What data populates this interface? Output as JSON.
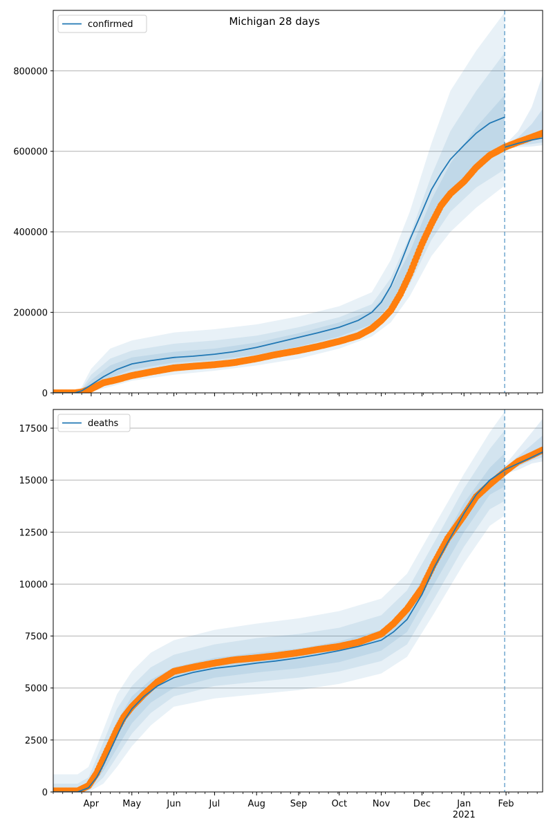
{
  "figure_title": "Michigan 28 days",
  "colors": {
    "model": "#1f77b4",
    "observed": "#ff7f0e",
    "band": "#1f77b4",
    "grid": "#b0b0b0",
    "forecast_line": "#1f77b4"
  },
  "x_axis": {
    "month_labels": [
      "Apr",
      "May",
      "Jun",
      "Jul",
      "Aug",
      "Sep",
      "Oct",
      "Nov",
      "Dec",
      "Jan",
      "Feb"
    ],
    "year_label": "2021"
  },
  "chart_data": [
    {
      "type": "line",
      "legend": "confirmed",
      "legend_position": "top-left",
      "grid": "y",
      "x_range": [
        "2020-03-04",
        "2021-02-28"
      ],
      "ylim": [
        0,
        950000
      ],
      "yticks": [
        0,
        200000,
        400000,
        600000,
        800000
      ],
      "ytick_labels": [
        "0",
        "200000",
        "400000",
        "600000",
        "800000"
      ],
      "forecast_start": "2021-01-31",
      "observed": {
        "x": [
          "2020-03-04",
          "2020-03-20",
          "2020-03-25",
          "2020-04-01",
          "2020-04-10",
          "2020-04-20",
          "2020-05-01",
          "2020-05-15",
          "2020-06-01",
          "2020-06-15",
          "2020-07-01",
          "2020-07-15",
          "2020-08-01",
          "2020-08-15",
          "2020-09-01",
          "2020-09-15",
          "2020-10-01",
          "2020-10-15",
          "2020-10-25",
          "2020-11-01",
          "2020-11-08",
          "2020-11-15",
          "2020-11-22",
          "2020-12-01",
          "2020-12-08",
          "2020-12-15",
          "2020-12-22",
          "2021-01-01",
          "2021-01-10",
          "2021-01-20",
          "2021-01-31",
          "2021-02-10",
          "2021-02-20",
          "2021-02-28"
        ],
        "y": [
          0,
          0,
          2000,
          10000,
          25000,
          33000,
          43000,
          52000,
          62000,
          66000,
          70000,
          75000,
          85000,
          95000,
          105000,
          115000,
          128000,
          142000,
          160000,
          180000,
          205000,
          245000,
          295000,
          370000,
          420000,
          465000,
          495000,
          525000,
          560000,
          590000,
          610000,
          623000,
          635000,
          645000
        ]
      },
      "model": {
        "x": [
          "2020-03-04",
          "2020-03-20",
          "2020-03-25",
          "2020-04-01",
          "2020-04-10",
          "2020-04-20",
          "2020-05-01",
          "2020-05-15",
          "2020-06-01",
          "2020-06-15",
          "2020-07-01",
          "2020-07-15",
          "2020-08-01",
          "2020-08-15",
          "2020-09-01",
          "2020-09-15",
          "2020-10-01",
          "2020-10-15",
          "2020-10-25",
          "2020-11-01",
          "2020-11-08",
          "2020-11-15",
          "2020-11-22",
          "2020-12-01",
          "2020-12-08",
          "2020-12-15",
          "2020-12-22",
          "2021-01-01",
          "2021-01-10",
          "2021-01-20",
          "2021-01-31"
        ],
        "y": [
          0,
          0,
          5000,
          20000,
          40000,
          58000,
          72000,
          80000,
          88000,
          91000,
          96000,
          102000,
          113000,
          124000,
          138000,
          149000,
          163000,
          180000,
          200000,
          225000,
          265000,
          320000,
          380000,
          450000,
          505000,
          545000,
          580000,
          615000,
          645000,
          670000,
          685000
        ]
      },
      "model_tail": {
        "x": [
          "2021-01-31",
          "2021-02-10",
          "2021-02-20",
          "2021-02-28"
        ],
        "y": [
          610000,
          620000,
          628000,
          633000
        ]
      },
      "bands": [
        {
          "x": [
            "2020-03-04",
            "2020-03-20",
            "2020-03-25",
            "2020-04-01",
            "2020-04-15",
            "2020-05-01",
            "2020-06-01",
            "2020-07-01",
            "2020-08-01",
            "2020-09-01",
            "2020-10-01",
            "2020-10-25",
            "2020-11-08",
            "2020-11-22",
            "2020-12-08",
            "2020-12-22",
            "2021-01-10",
            "2021-01-31"
          ],
          "lo": [
            0,
            0,
            0,
            3000,
            15000,
            30000,
            45000,
            55000,
            68000,
            85000,
            110000,
            140000,
            175000,
            240000,
            340000,
            400000,
            460000,
            515000
          ],
          "hi": [
            0,
            0,
            15000,
            60000,
            110000,
            130000,
            150000,
            158000,
            170000,
            190000,
            215000,
            250000,
            330000,
            450000,
            620000,
            750000,
            850000,
            945000
          ]
        },
        {
          "x": [
            "2020-03-04",
            "2020-03-20",
            "2020-03-25",
            "2020-04-01",
            "2020-04-15",
            "2020-05-01",
            "2020-06-01",
            "2020-07-01",
            "2020-08-01",
            "2020-09-01",
            "2020-10-01",
            "2020-10-25",
            "2020-11-08",
            "2020-11-22",
            "2020-12-08",
            "2020-12-22",
            "2021-01-10",
            "2021-01-31"
          ],
          "lo": [
            0,
            0,
            0,
            8000,
            25000,
            45000,
            60000,
            68000,
            82000,
            100000,
            125000,
            155000,
            195000,
            270000,
            380000,
            450000,
            510000,
            555000
          ],
          "hi": [
            0,
            0,
            10000,
            45000,
            85000,
            105000,
            122000,
            130000,
            142000,
            163000,
            188000,
            220000,
            285000,
            390000,
            540000,
            650000,
            750000,
            845000
          ]
        },
        {
          "x": [
            "2020-03-04",
            "2020-03-20",
            "2020-03-25",
            "2020-04-01",
            "2020-04-15",
            "2020-05-01",
            "2020-06-01",
            "2020-07-01",
            "2020-08-01",
            "2020-09-01",
            "2020-10-01",
            "2020-10-25",
            "2020-11-08",
            "2020-11-22",
            "2020-12-08",
            "2020-12-22",
            "2021-01-10",
            "2021-01-31"
          ],
          "lo": [
            0,
            0,
            2000,
            13000,
            38000,
            58000,
            75000,
            82000,
            95000,
            115000,
            140000,
            170000,
            220000,
            300000,
            420000,
            500000,
            560000,
            605000
          ],
          "hi": [
            0,
            0,
            8000,
            32000,
            68000,
            88000,
            102000,
            110000,
            125000,
            148000,
            175000,
            205000,
            260000,
            350000,
            480000,
            570000,
            660000,
            740000
          ]
        }
      ],
      "tail_bands": [
        {
          "x": [
            "2021-01-31",
            "2021-02-10",
            "2021-02-20",
            "2021-02-28"
          ],
          "lo": [
            605000,
            610000,
            612000,
            615000
          ],
          "hi": [
            615000,
            650000,
            710000,
            790000
          ]
        },
        {
          "x": [
            "2021-01-31",
            "2021-02-10",
            "2021-02-20",
            "2021-02-28"
          ],
          "lo": [
            607000,
            614000,
            618000,
            622000
          ],
          "hi": [
            613000,
            635000,
            668000,
            705000
          ]
        }
      ]
    },
    {
      "type": "line",
      "legend": "deaths",
      "legend_position": "top-left",
      "grid": "y",
      "x_range": [
        "2020-03-04",
        "2021-02-28"
      ],
      "ylim": [
        0,
        18400
      ],
      "yticks": [
        0,
        2500,
        5000,
        7500,
        10000,
        12500,
        15000,
        17500
      ],
      "ytick_labels": [
        "0",
        "2500",
        "5000",
        "7500",
        "10000",
        "12500",
        "15000",
        "17500"
      ],
      "forecast_start": "2021-01-31",
      "observed": {
        "x": [
          "2020-03-04",
          "2020-03-22",
          "2020-03-30",
          "2020-04-05",
          "2020-04-10",
          "2020-04-15",
          "2020-04-20",
          "2020-04-25",
          "2020-05-01",
          "2020-05-10",
          "2020-05-20",
          "2020-06-01",
          "2020-06-15",
          "2020-07-01",
          "2020-07-15",
          "2020-08-01",
          "2020-08-15",
          "2020-09-01",
          "2020-09-15",
          "2020-10-01",
          "2020-10-15",
          "2020-11-01",
          "2020-11-10",
          "2020-11-20",
          "2020-12-01",
          "2020-12-10",
          "2020-12-20",
          "2021-01-01",
          "2021-01-10",
          "2021-01-20",
          "2021-01-31",
          "2021-02-10",
          "2021-02-20",
          "2021-02-28"
        ],
        "y": [
          50,
          50,
          300,
          900,
          1600,
          2300,
          3000,
          3600,
          4100,
          4700,
          5300,
          5800,
          6000,
          6200,
          6350,
          6450,
          6550,
          6700,
          6850,
          7000,
          7200,
          7600,
          8100,
          8800,
          9800,
          11000,
          12200,
          13300,
          14200,
          14800,
          15400,
          15900,
          16200,
          16450
        ]
      },
      "model": {
        "x": [
          "2020-03-04",
          "2020-03-22",
          "2020-03-30",
          "2020-04-05",
          "2020-04-10",
          "2020-04-15",
          "2020-04-20",
          "2020-04-25",
          "2020-05-01",
          "2020-05-10",
          "2020-05-20",
          "2020-06-01",
          "2020-06-15",
          "2020-07-01",
          "2020-07-15",
          "2020-08-01",
          "2020-08-15",
          "2020-09-01",
          "2020-09-15",
          "2020-10-01",
          "2020-10-15",
          "2020-11-01",
          "2020-11-10",
          "2020-11-20",
          "2020-12-01",
          "2020-12-10",
          "2020-12-20",
          "2021-01-01",
          "2021-01-10",
          "2021-01-20",
          "2021-01-31"
        ],
        "y": [
          0,
          0,
          200,
          700,
          1300,
          2000,
          2700,
          3400,
          4000,
          4600,
          5100,
          5500,
          5750,
          5950,
          6050,
          6200,
          6300,
          6450,
          6600,
          6800,
          7000,
          7300,
          7700,
          8300,
          9500,
          10800,
          12000,
          13400,
          14300,
          15000,
          15500
        ]
      },
      "model_tail": {
        "x": [
          "2021-01-31",
          "2021-02-10",
          "2021-02-20",
          "2021-02-28"
        ],
        "y": [
          15500,
          15800,
          16100,
          16350
        ]
      },
      "bands": [
        {
          "x": [
            "2020-03-04",
            "2020-03-22",
            "2020-03-30",
            "2020-04-10",
            "2020-04-20",
            "2020-05-01",
            "2020-05-15",
            "2020-06-01",
            "2020-07-01",
            "2020-08-01",
            "2020-09-01",
            "2020-10-01",
            "2020-11-01",
            "2020-11-20",
            "2020-12-10",
            "2021-01-01",
            "2021-01-20",
            "2021-01-31"
          ],
          "lo": [
            0,
            0,
            0,
            400,
            1200,
            2200,
            3200,
            4100,
            4500,
            4700,
            4900,
            5200,
            5700,
            6500,
            8600,
            11000,
            12800,
            13300
          ],
          "hi": [
            850,
            850,
            1200,
            3000,
            4700,
            5800,
            6700,
            7300,
            7800,
            8100,
            8350,
            8700,
            9300,
            10500,
            12800,
            15300,
            17300,
            18300
          ]
        },
        {
          "x": [
            "2020-03-04",
            "2020-03-22",
            "2020-03-30",
            "2020-04-10",
            "2020-04-20",
            "2020-05-01",
            "2020-05-15",
            "2020-06-01",
            "2020-07-01",
            "2020-08-01",
            "2020-09-01",
            "2020-10-01",
            "2020-11-01",
            "2020-11-20",
            "2020-12-10",
            "2021-01-01",
            "2021-01-20",
            "2021-01-31"
          ],
          "lo": [
            0,
            0,
            50,
            700,
            1700,
            2800,
            3800,
            4600,
            5100,
            5300,
            5500,
            5800,
            6300,
            7100,
            9300,
            11800,
            13600,
            14000
          ],
          "hi": [
            400,
            400,
            700,
            2400,
            4000,
            5100,
            6000,
            6600,
            7100,
            7400,
            7600,
            7900,
            8500,
            9700,
            12000,
            14600,
            16500,
            17400
          ]
        },
        {
          "x": [
            "2020-03-04",
            "2020-03-22",
            "2020-03-30",
            "2020-04-10",
            "2020-04-20",
            "2020-05-01",
            "2020-05-15",
            "2020-06-01",
            "2020-07-01",
            "2020-08-01",
            "2020-09-01",
            "2020-10-01",
            "2020-11-01",
            "2020-11-20",
            "2020-12-10",
            "2021-01-01",
            "2021-01-20",
            "2021-01-31"
          ],
          "lo": [
            0,
            0,
            100,
            1000,
            2100,
            3300,
            4300,
            5000,
            5500,
            5750,
            5950,
            6250,
            6800,
            7700,
            10000,
            12500,
            14300,
            14700
          ],
          "hi": [
            150,
            150,
            400,
            1900,
            3400,
            4600,
            5400,
            6000,
            6450,
            6700,
            6900,
            7250,
            7800,
            8900,
            11300,
            13900,
            15600,
            16300
          ]
        }
      ],
      "tail_bands": [
        {
          "x": [
            "2021-01-31",
            "2021-02-10",
            "2021-02-20",
            "2021-02-28"
          ],
          "lo": [
            15300,
            15500,
            15800,
            15900
          ],
          "hi": [
            15700,
            16500,
            17300,
            17950
          ]
        },
        {
          "x": [
            "2021-01-31",
            "2021-02-10",
            "2021-02-20",
            "2021-02-28"
          ],
          "lo": [
            15400,
            15650,
            15950,
            16100
          ],
          "hi": [
            15600,
            16150,
            16700,
            17150
          ]
        }
      ]
    }
  ]
}
